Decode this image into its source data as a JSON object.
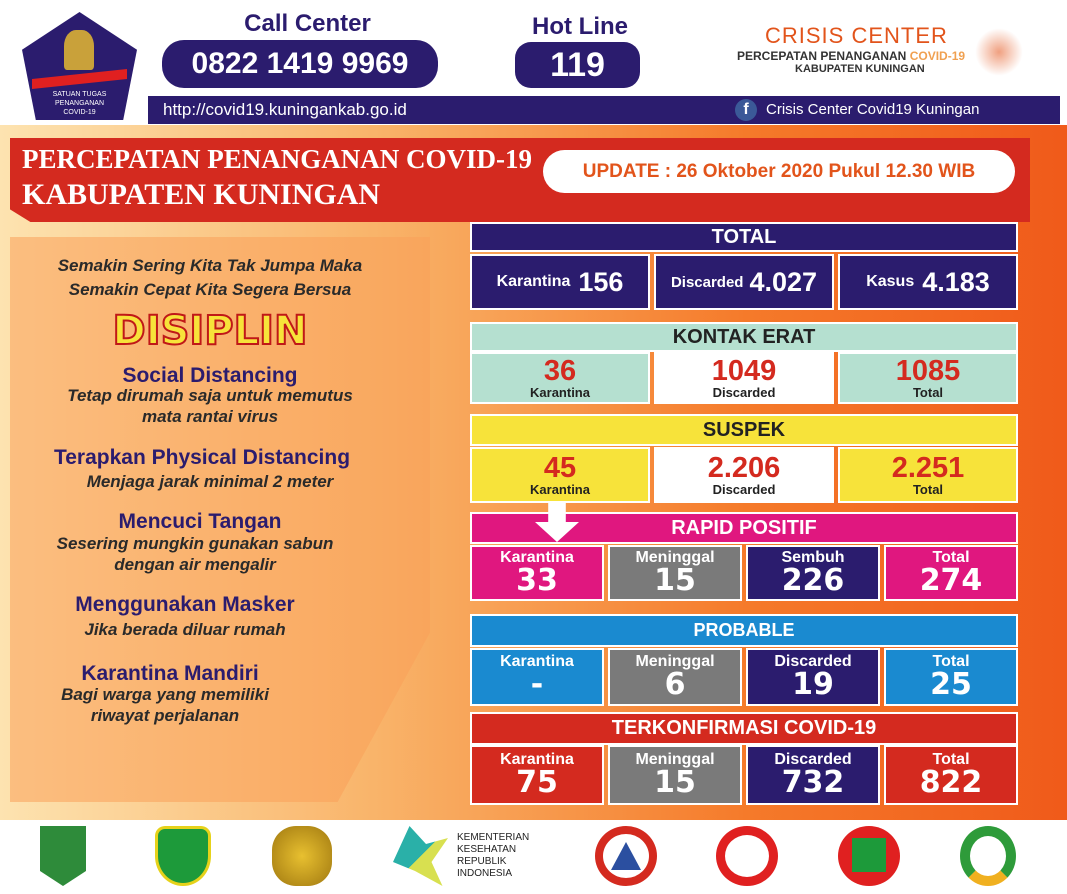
{
  "header": {
    "logo_text": "SATUAN TUGAS PENANGANAN COVID-19",
    "call_center_label": "Call Center",
    "call_center_number": "0822 1419 9969",
    "hotline_label": "Hot Line",
    "hotline_number": "119",
    "crisis_title": "CRISIS CENTER",
    "crisis_line1a": "PERCEPATAN PENANGANAN ",
    "crisis_line1b": "COVID-19",
    "crisis_line2": "KABUPATEN KUNINGAN",
    "url": "http://covid19.kuningankab.go.id",
    "facebook_icon": "facebook-icon",
    "facebook": "Crisis Center Covid19 Kuningan"
  },
  "banner": {
    "title1": "PERCEPATAN PENANGANAN COVID-19",
    "title2": "KABUPATEN KUNINGAN",
    "update": "UPDATE : 26 Oktober 2020 Pukul 12.30 WIB"
  },
  "tips": {
    "slogan1": "Semakin Sering Kita Tak Jumpa Maka",
    "slogan2": "Semakin Cepat Kita Segera Bersua",
    "disiplin": "DISIPLIN",
    "items": [
      {
        "title": "Social Distancing",
        "l1": "Tetap dirumah saja untuk memutus",
        "l2": "mata rantai virus"
      },
      {
        "title": "Terapkan Physical Distancing",
        "l1": "Menjaga jarak minimal 2 meter",
        "l2": ""
      },
      {
        "title": "Mencuci Tangan",
        "l1": "Sesering mungkin gunakan sabun",
        "l2": "dengan air mengalir"
      },
      {
        "title": "Menggunakan Masker",
        "l1": "Jika berada diluar rumah",
        "l2": ""
      },
      {
        "title": "Karantina Mandiri",
        "l1": "Bagi warga yang memiliki",
        "l2": "riwayat perjalanan"
      }
    ]
  },
  "total": {
    "title": "TOTAL",
    "cells": [
      {
        "label": "Karantina",
        "value": "156"
      },
      {
        "label": "Discarded",
        "value": "4.027"
      },
      {
        "label": "Kasus",
        "value": "4.183"
      }
    ]
  },
  "kontak_erat": {
    "title": "KONTAK ERAT",
    "cells": [
      {
        "label": "Karantina",
        "value": "36"
      },
      {
        "label": "Discarded",
        "value": "1049"
      },
      {
        "label": "Total",
        "value": "1085"
      }
    ]
  },
  "suspek": {
    "title": "SUSPEK",
    "cells": [
      {
        "label": "Karantina",
        "value": "45"
      },
      {
        "label": "Discarded",
        "value": "2.206"
      },
      {
        "label": "Total",
        "value": "2.251"
      }
    ]
  },
  "rapid": {
    "title": "RAPID POSITIF",
    "cells": [
      {
        "label": "Karantina",
        "value": "33"
      },
      {
        "label": "Meninggal",
        "value": "15"
      },
      {
        "label": "Sembuh",
        "value": "226"
      },
      {
        "label": "Total",
        "value": "274"
      }
    ]
  },
  "probable": {
    "title": "PROBABLE",
    "cells": [
      {
        "label": "Karantina",
        "value": "-"
      },
      {
        "label": "Meninggal",
        "value": "6"
      },
      {
        "label": "Discarded",
        "value": "19"
      },
      {
        "label": "Total",
        "value": "25"
      }
    ]
  },
  "konfirmasi": {
    "title": "TERKONFIRMASI COVID-19",
    "cells": [
      {
        "label": "Karantina",
        "value": "75"
      },
      {
        "label": "Meninggal",
        "value": "15"
      },
      {
        "label": "Discarded",
        "value": "732"
      },
      {
        "label": "Total",
        "value": "822"
      }
    ]
  },
  "footer": {
    "kemenkes": [
      "KEMENTERIAN",
      "KESEHATAN",
      "REPUBLIK",
      "INDONESIA"
    ]
  },
  "colors": {
    "navy": "#2b1c6e",
    "red": "#d42a1f",
    "mint": "#b5e0d0",
    "yellow": "#f7e33a",
    "magenta": "#e0177f",
    "blue": "#1a8ad0",
    "gray": "#7a7a7a"
  }
}
